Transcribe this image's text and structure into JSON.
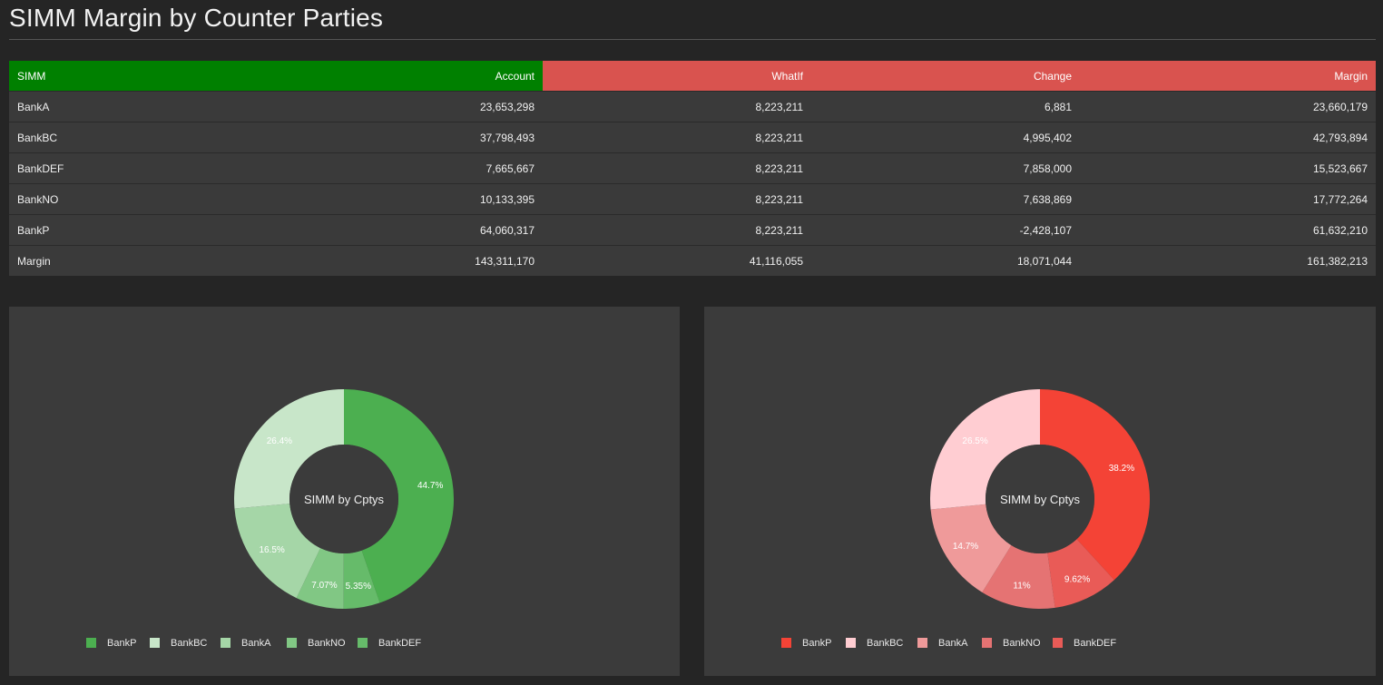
{
  "page": {
    "title": "SIMM Margin by Counter Parties"
  },
  "table": {
    "headers": [
      "SIMM",
      "Account",
      "WhatIf",
      "Change",
      "Margin"
    ],
    "rows": [
      [
        "BankA",
        "23,653,298",
        "8,223,211",
        "6,881",
        "23,660,179"
      ],
      [
        "BankBC",
        "37,798,493",
        "8,223,211",
        "4,995,402",
        "42,793,894"
      ],
      [
        "BankDEF",
        "7,665,667",
        "8,223,211",
        "7,858,000",
        "15,523,667"
      ],
      [
        "BankNO",
        "10,133,395",
        "8,223,211",
        "7,638,869",
        "17,772,264"
      ],
      [
        "BankP",
        "64,060,317",
        "8,223,211",
        "-2,428,107",
        "61,632,210"
      ],
      [
        "Margin",
        "143,311,170",
        "41,116,055",
        "18,071,044",
        "161,382,213"
      ]
    ]
  },
  "chart_data": [
    {
      "type": "pie",
      "center_label": "SIMM by Cptys",
      "legend_position": "bottom",
      "slices": [
        {
          "label": "BankP",
          "value": 64060317,
          "pct_label": "44.7%",
          "color": "#4caf50"
        },
        {
          "label": "BankDEF",
          "value": 7665667,
          "pct_label": "5.35%",
          "color": "#66bb6a"
        },
        {
          "label": "BankNO",
          "value": 10133395,
          "pct_label": "7.07%",
          "color": "#81c784"
        },
        {
          "label": "BankA",
          "value": 23653298,
          "pct_label": "16.5%",
          "color": "#a5d6a7"
        },
        {
          "label": "BankBC",
          "value": 37798493,
          "pct_label": "26.4%",
          "color": "#c8e6c9"
        }
      ],
      "legend": [
        "BankP",
        "BankBC",
        "BankA",
        "BankNO",
        "BankDEF"
      ]
    },
    {
      "type": "pie",
      "center_label": "SIMM by Cptys",
      "legend_position": "bottom",
      "slices": [
        {
          "label": "BankP",
          "value": 61632210,
          "pct_label": "38.2%",
          "color": "#f44336"
        },
        {
          "label": "BankDEF",
          "value": 15523667,
          "pct_label": "9.62%",
          "color": "#e95b57"
        },
        {
          "label": "BankNO",
          "value": 17772264,
          "pct_label": "11%",
          "color": "#e57373"
        },
        {
          "label": "BankA",
          "value": 23660179,
          "pct_label": "14.7%",
          "color": "#ef9a9a"
        },
        {
          "label": "BankBC",
          "value": 42793894,
          "pct_label": "26.5%",
          "color": "#ffcdd2"
        }
      ],
      "legend": [
        "BankP",
        "BankBC",
        "BankA",
        "BankNO",
        "BankDEF"
      ]
    }
  ]
}
